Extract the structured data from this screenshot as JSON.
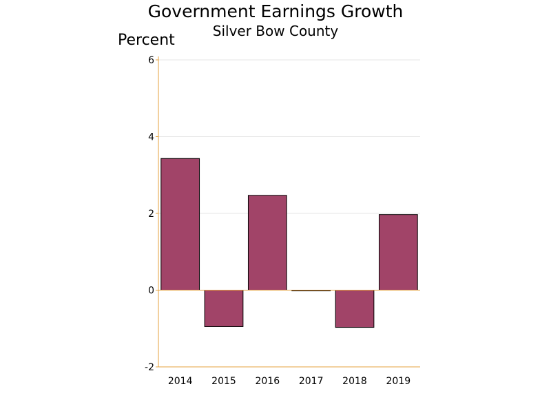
{
  "title": "Government Earnings Growth",
  "subtitle": "Silver Bow County",
  "chart_data": {
    "type": "bar",
    "title": "Government Earnings Growth",
    "subtitle": "Silver Bow County",
    "ylabel": "Percent",
    "xlabel": "",
    "categories": [
      "2014",
      "2015",
      "2016",
      "2017",
      "2018",
      "2019"
    ],
    "values": [
      3.43,
      -0.95,
      2.47,
      -0.02,
      -0.97,
      1.97
    ],
    "ylim": [
      -2,
      6
    ],
    "yticks": [
      -2,
      0,
      2,
      4,
      6
    ],
    "grid": true,
    "colors": {
      "bar": "#a14468",
      "bar_outline": "#000000",
      "axis": "#e6a23c",
      "grid": "#e6e6e6"
    }
  }
}
